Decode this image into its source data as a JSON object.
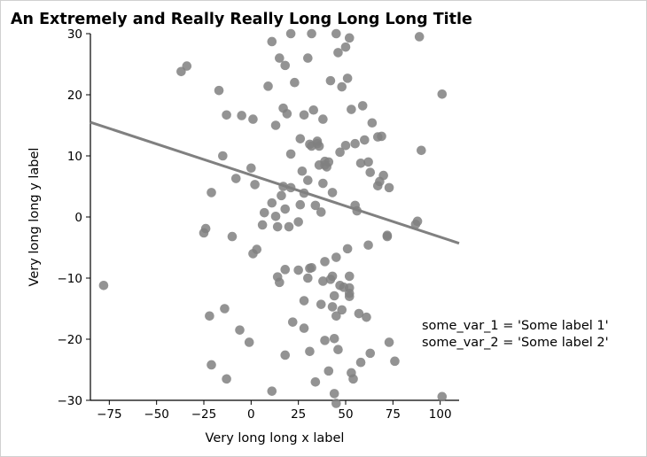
{
  "chart_data": {
    "type": "scatter",
    "title": "An Extremely and Really Really Long Long Long Title",
    "xlabel": "Very long long x label",
    "ylabel": "Very long long y label",
    "xlim": [
      -85,
      110
    ],
    "ylim": [
      -30,
      30
    ],
    "xticks": [
      -75,
      -50,
      -25,
      0,
      25,
      50,
      75,
      100
    ],
    "yticks": [
      -30,
      -20,
      -10,
      0,
      10,
      20,
      30
    ],
    "xtick_labels": [
      "−75",
      "−50",
      "−25",
      "0",
      "25",
      "50",
      "75",
      "100"
    ],
    "ytick_labels": [
      "−30",
      "−20",
      "−10",
      "0",
      "10",
      "20",
      "30"
    ],
    "annotation_lines": [
      "some_var_1 = 'Some label 1'",
      "some_var_2 = 'Some label 2'"
    ],
    "marker_color": "#808080",
    "line_color": "#808080",
    "grid": false,
    "fit_line": {
      "x": [
        -85,
        110
      ],
      "y": [
        15.5,
        -4.3
      ]
    },
    "points": [
      [
        -78,
        -11.2
      ],
      [
        -37,
        23.8
      ],
      [
        -34,
        24.7
      ],
      [
        -17,
        20.7
      ],
      [
        -15,
        10.0
      ],
      [
        -13,
        16.7
      ],
      [
        -5,
        16.6
      ],
      [
        1,
        16.0
      ],
      [
        11,
        28.7
      ],
      [
        13,
        15.0
      ],
      [
        15,
        26.0
      ],
      [
        18,
        24.8
      ],
      [
        21,
        30.0
      ],
      [
        23,
        22.0
      ],
      [
        30,
        26.0
      ],
      [
        32,
        30.0
      ],
      [
        42,
        22.3
      ],
      [
        45,
        30.0
      ],
      [
        46,
        26.9
      ],
      [
        48,
        21.3
      ],
      [
        50,
        27.8
      ],
      [
        51,
        22.7
      ],
      [
        52,
        29.3
      ],
      [
        53,
        17.6
      ],
      [
        59,
        18.2
      ],
      [
        64,
        15.4
      ],
      [
        89,
        29.5
      ],
      [
        101,
        20.1
      ],
      [
        9,
        21.4
      ],
      [
        17,
        17.8
      ],
      [
        19,
        16.9
      ],
      [
        26,
        12.8
      ],
      [
        28,
        16.7
      ],
      [
        31,
        11.9
      ],
      [
        33,
        17.5
      ],
      [
        35,
        12.4
      ],
      [
        38,
        16.0
      ],
      [
        39,
        8.5
      ],
      [
        47,
        10.6
      ],
      [
        50,
        11.7
      ],
      [
        55,
        12.0
      ],
      [
        58,
        8.8
      ],
      [
        60,
        12.6
      ],
      [
        62,
        9.0
      ],
      [
        63,
        7.3
      ],
      [
        67,
        13.1
      ],
      [
        69,
        13.2
      ],
      [
        70,
        6.8
      ],
      [
        68,
        5.8
      ],
      [
        67,
        5.1
      ],
      [
        73,
        4.8
      ],
      [
        90,
        10.9
      ],
      [
        -21,
        4.0
      ],
      [
        -24,
        -1.9
      ],
      [
        -25,
        -2.6
      ],
      [
        -10,
        -3.2
      ],
      [
        -8,
        6.3
      ],
      [
        0,
        8.0
      ],
      [
        2,
        5.3
      ],
      [
        7,
        0.7
      ],
      [
        6,
        -1.3
      ],
      [
        11,
        2.3
      ],
      [
        13,
        0.1
      ],
      [
        14,
        -1.6
      ],
      [
        16,
        3.5
      ],
      [
        17,
        5.0
      ],
      [
        18,
        1.3
      ],
      [
        20,
        -1.6
      ],
      [
        21,
        4.8
      ],
      [
        21,
        10.3
      ],
      [
        25,
        -0.8
      ],
      [
        26,
        2.0
      ],
      [
        27,
        7.5
      ],
      [
        28,
        3.9
      ],
      [
        30,
        6.0
      ],
      [
        32,
        11.6
      ],
      [
        34,
        1.9
      ],
      [
        36,
        8.5
      ],
      [
        37,
        0.8
      ],
      [
        38,
        5.5
      ],
      [
        39,
        9.1
      ],
      [
        40,
        8.2
      ],
      [
        41,
        9.0
      ],
      [
        43,
        4.0
      ],
      [
        55,
        1.9
      ],
      [
        56,
        1.0
      ],
      [
        72,
        -3.0
      ],
      [
        72,
        -3.2
      ],
      [
        87,
        -1.2
      ],
      [
        88,
        -0.7
      ],
      [
        35,
        12.0
      ],
      [
        36,
        11.6
      ],
      [
        22,
        -17.2
      ],
      [
        -22,
        -16.2
      ],
      [
        -21,
        -24.2
      ],
      [
        -14,
        -15.0
      ],
      [
        -13,
        -26.5
      ],
      [
        -6,
        -18.5
      ],
      [
        -1,
        -20.5
      ],
      [
        1,
        -6.0
      ],
      [
        3,
        -5.3
      ],
      [
        11,
        -28.5
      ],
      [
        14,
        -9.8
      ],
      [
        15,
        -10.7
      ],
      [
        18,
        -8.6
      ],
      [
        18,
        -22.6
      ],
      [
        25,
        -8.7
      ],
      [
        28,
        -13.7
      ],
      [
        28,
        -18.2
      ],
      [
        30,
        -10.0
      ],
      [
        31,
        -8.4
      ],
      [
        32,
        -8.3
      ],
      [
        31,
        -22.0
      ],
      [
        34,
        -27.0
      ],
      [
        37,
        -14.3
      ],
      [
        38,
        -10.5
      ],
      [
        39,
        -7.3
      ],
      [
        39,
        -20.2
      ],
      [
        41,
        -25.2
      ],
      [
        42,
        -10.2
      ],
      [
        43,
        -9.7
      ],
      [
        43,
        -14.7
      ],
      [
        44,
        -12.9
      ],
      [
        45,
        -6.6
      ],
      [
        45,
        -16.2
      ],
      [
        46,
        -21.7
      ],
      [
        47,
        -11.2
      ],
      [
        48,
        -15.2
      ],
      [
        51,
        -5.2
      ],
      [
        52,
        -9.7
      ],
      [
        52,
        -11.6
      ],
      [
        52,
        -12.5
      ],
      [
        53,
        -25.5
      ],
      [
        54,
        -26.5
      ],
      [
        57,
        -15.8
      ],
      [
        58,
        -23.8
      ],
      [
        61,
        -16.4
      ],
      [
        62,
        -4.6
      ],
      [
        63,
        -22.3
      ],
      [
        73,
        -20.5
      ],
      [
        76,
        -23.6
      ],
      [
        101,
        -29.4
      ],
      [
        44,
        -19.9
      ],
      [
        52,
        -13.0
      ],
      [
        49,
        -11.5
      ],
      [
        44,
        -28.9
      ],
      [
        45,
        -30.5
      ]
    ]
  }
}
